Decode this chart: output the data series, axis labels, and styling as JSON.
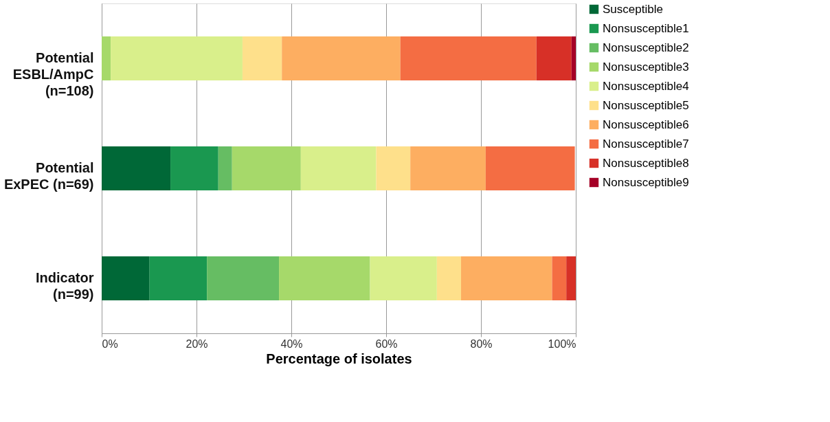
{
  "chart_data": {
    "type": "bar",
    "orientation": "horizontal",
    "stacked": true,
    "xlabel": "Percentage of isolates",
    "categories": [
      "Potential\nESBL/AmpC\n(n=108)",
      "Potential\nExPEC (n=69)",
      "Indicator\n(n=99)"
    ],
    "series": [
      {
        "name": "Susceptible",
        "color": "#006837",
        "values": [
          0,
          14.5,
          10.1
        ]
      },
      {
        "name": "Nonsusceptible1",
        "color": "#1a9850",
        "values": [
          0,
          10.1,
          12.1
        ]
      },
      {
        "name": "Nonsusceptible2",
        "color": "#66bd63",
        "values": [
          0,
          2.9,
          15.2
        ]
      },
      {
        "name": "Nonsusceptible3",
        "color": "#a6d96a",
        "values": [
          1.9,
          14.5,
          19.2
        ]
      },
      {
        "name": "Nonsusceptible4",
        "color": "#d9ef8b",
        "values": [
          27.8,
          15.9,
          14.1
        ]
      },
      {
        "name": "Nonsusceptible5",
        "color": "#fee08b",
        "values": [
          8.3,
          7.2,
          5.1
        ]
      },
      {
        "name": "Nonsusceptible6",
        "color": "#fdae61",
        "values": [
          25.0,
          15.9,
          19.2
        ]
      },
      {
        "name": "Nonsusceptible7",
        "color": "#f46d43",
        "values": [
          28.7,
          18.8,
          3.0
        ]
      },
      {
        "name": "Nonsusceptible8",
        "color": "#d73027",
        "values": [
          7.4,
          0,
          2.0
        ]
      },
      {
        "name": "Nonsusceptible9",
        "color": "#a50026",
        "values": [
          0.9,
          0,
          0
        ]
      }
    ],
    "xlim": [
      0,
      100
    ],
    "xticks": [
      {
        "value": 0,
        "label": "0%"
      },
      {
        "value": 20,
        "label": "20%"
      },
      {
        "value": 40,
        "label": "40%"
      },
      {
        "value": 60,
        "label": "60%"
      },
      {
        "value": 80,
        "label": "80%"
      },
      {
        "value": 100,
        "label": "100%"
      }
    ],
    "grid": "x",
    "legend": "right"
  }
}
